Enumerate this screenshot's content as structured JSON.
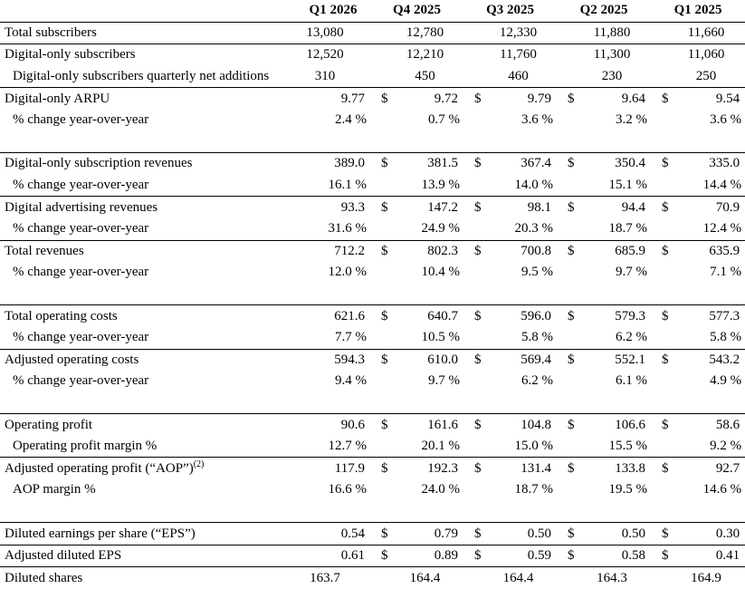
{
  "columns": [
    "Q1 2026",
    "Q4 2025",
    "Q3 2025",
    "Q2 2025",
    "Q1 2025"
  ],
  "currency_symbol": "$",
  "rows": [
    {
      "label": "Total subscribers",
      "values": [
        "13,080",
        "12,780",
        "12,330",
        "11,880",
        "11,660"
      ],
      "kind": "count",
      "sep": false
    },
    {
      "label": "Digital-only subscribers",
      "values": [
        "12,520",
        "12,210",
        "11,760",
        "11,300",
        "11,060"
      ],
      "kind": "count",
      "sep": true
    },
    {
      "label": "Digital-only subscribers quarterly net additions",
      "values": [
        "310",
        "450",
        "460",
        "230",
        "250"
      ],
      "kind": "count",
      "sep": false,
      "indent": true
    },
    {
      "label": "Digital-only ARPU",
      "values": [
        "9.77",
        "9.72",
        "9.79",
        "9.64",
        "9.54"
      ],
      "kind": "money",
      "sep": true
    },
    {
      "label": "% change year-over-year",
      "values": [
        "2.4 %",
        "0.7 %",
        "3.6 %",
        "3.2 %",
        "3.6 %"
      ],
      "kind": "pct",
      "sep": false,
      "indent": true
    },
    {
      "gap": true
    },
    {
      "label": "Digital-only subscription revenues",
      "values": [
        "389.0",
        "381.5",
        "367.4",
        "350.4",
        "335.0"
      ],
      "kind": "money",
      "sep": true
    },
    {
      "label": "% change year-over-year",
      "values": [
        "16.1 %",
        "13.9 %",
        "14.0 %",
        "15.1 %",
        "14.4 %"
      ],
      "kind": "pct",
      "sep": false,
      "indent": true
    },
    {
      "label": "Digital advertising revenues",
      "values": [
        "93.3",
        "147.2",
        "98.1",
        "94.4",
        "70.9"
      ],
      "kind": "money",
      "sep": true
    },
    {
      "label": "% change year-over-year",
      "values": [
        "31.6 %",
        "24.9 %",
        "20.3 %",
        "18.7 %",
        "12.4 %"
      ],
      "kind": "pct",
      "sep": false,
      "indent": true
    },
    {
      "label": "Total revenues",
      "values": [
        "712.2",
        "802.3",
        "700.8",
        "685.9",
        "635.9"
      ],
      "kind": "money",
      "sep": true
    },
    {
      "label": "% change year-over-year",
      "values": [
        "12.0 %",
        "10.4 %",
        "9.5 %",
        "9.7 %",
        "7.1 %"
      ],
      "kind": "pct",
      "sep": false,
      "indent": true
    },
    {
      "gap": true
    },
    {
      "label": "Total operating costs",
      "values": [
        "621.6",
        "640.7",
        "596.0",
        "579.3",
        "577.3"
      ],
      "kind": "money",
      "sep": true
    },
    {
      "label": "% change year-over-year",
      "values": [
        "7.7 %",
        "10.5 %",
        "5.8 %",
        "6.2 %",
        "5.8 %"
      ],
      "kind": "pct",
      "sep": false,
      "indent": true
    },
    {
      "label": "Adjusted operating costs",
      "values": [
        "594.3",
        "610.0",
        "569.4",
        "552.1",
        "543.2"
      ],
      "kind": "money",
      "sep": true
    },
    {
      "label": "% change year-over-year",
      "values": [
        "9.4 %",
        "9.7 %",
        "6.2 %",
        "6.1 %",
        "4.9 %"
      ],
      "kind": "pct",
      "sep": false,
      "indent": true
    },
    {
      "gap": true
    },
    {
      "label": "Operating profit",
      "values": [
        "90.6",
        "161.6",
        "104.8",
        "106.6",
        "58.6"
      ],
      "kind": "money",
      "sep": true
    },
    {
      "label": "Operating profit margin %",
      "values": [
        "12.7 %",
        "20.1 %",
        "15.0 %",
        "15.5 %",
        "9.2 %"
      ],
      "kind": "pct",
      "sep": false,
      "indent": true
    },
    {
      "label": "Adjusted operating profit (“AOP”)",
      "sup": "(2)",
      "values": [
        "117.9",
        "192.3",
        "131.4",
        "133.8",
        "92.7"
      ],
      "kind": "money",
      "sep": true
    },
    {
      "label": "AOP margin %",
      "values": [
        "16.6 %",
        "24.0 %",
        "18.7 %",
        "19.5 %",
        "14.6 %"
      ],
      "kind": "pct",
      "sep": false,
      "indent": true
    },
    {
      "gap": true
    },
    {
      "label": "Diluted earnings per share (“EPS”)",
      "values": [
        "0.54",
        "0.79",
        "0.50",
        "0.50",
        "0.30"
      ],
      "kind": "money",
      "sep": true
    },
    {
      "label": "Adjusted diluted EPS",
      "values": [
        "0.61",
        "0.89",
        "0.59",
        "0.58",
        "0.41"
      ],
      "kind": "money",
      "sep": true
    },
    {
      "label": "Diluted shares",
      "values": [
        "163.7",
        "164.4",
        "164.4",
        "164.3",
        "164.9"
      ],
      "kind": "count",
      "sep": true
    }
  ]
}
